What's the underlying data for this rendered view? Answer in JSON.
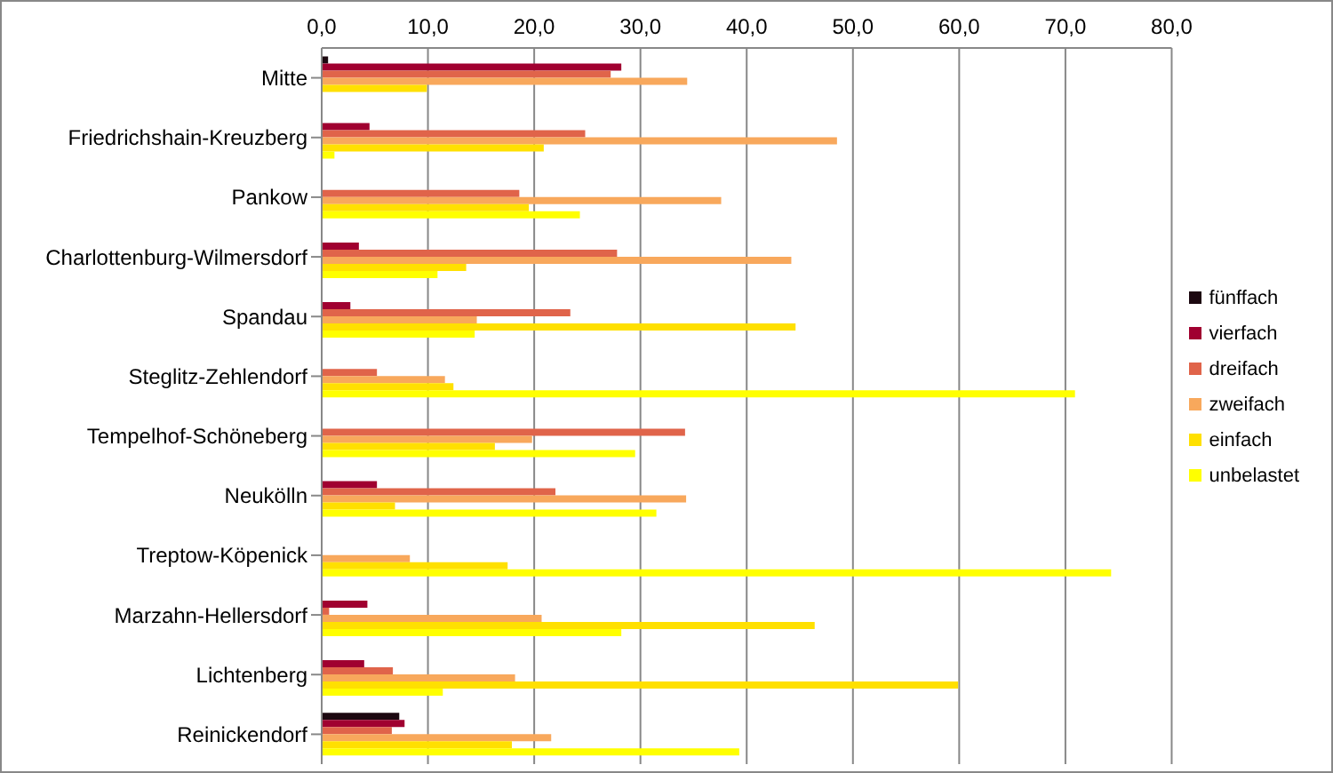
{
  "chart_data": {
    "type": "bar",
    "orientation": "horizontal",
    "categories": [
      "Mitte",
      "Friedrichshain-Kreuzberg",
      "Pankow",
      "Charlottenburg-Wilmersdorf",
      "Spandau",
      "Steglitz-Zehlendorf",
      "Tempelhof-Schöneberg",
      "Neukölln",
      "Treptow-Köpenick",
      "Marzahn-Hellersdorf",
      "Lichtenberg",
      "Reinickendorf"
    ],
    "series": [
      {
        "name": "fünffach",
        "color": "#1c0810",
        "values": [
          0.6,
          0,
          0,
          0,
          0,
          0,
          0,
          0,
          0,
          0,
          0,
          7.3
        ]
      },
      {
        "name": "vierfach",
        "color": "#a00030",
        "values": [
          28.2,
          4.5,
          0,
          3.5,
          2.7,
          0,
          0,
          5.2,
          0,
          4.3,
          4.0,
          7.8
        ]
      },
      {
        "name": "dreifach",
        "color": "#e0644a",
        "values": [
          27.2,
          24.8,
          18.6,
          27.8,
          23.4,
          5.2,
          34.2,
          22.0,
          0,
          0.7,
          6.7,
          6.6
        ]
      },
      {
        "name": "zweifach",
        "color": "#f8a85c",
        "values": [
          34.4,
          48.5,
          37.6,
          44.2,
          14.6,
          11.6,
          19.8,
          34.3,
          8.3,
          20.7,
          18.2,
          21.6
        ]
      },
      {
        "name": "einfach",
        "color": "#ffe000",
        "values": [
          9.9,
          20.9,
          19.5,
          13.6,
          44.6,
          12.4,
          16.3,
          6.9,
          17.5,
          46.4,
          59.9,
          17.9
        ]
      },
      {
        "name": "unbelastet",
        "color": "#ffff00",
        "values": [
          0,
          1.2,
          24.3,
          10.9,
          14.4,
          70.9,
          29.5,
          31.5,
          74.3,
          28.2,
          11.4,
          39.3
        ]
      }
    ],
    "xlim": [
      0,
      80
    ],
    "xticks": [
      {
        "value": 0,
        "label": "0,0"
      },
      {
        "value": 10,
        "label": "10,0"
      },
      {
        "value": 20,
        "label": "20,0"
      },
      {
        "value": 30,
        "label": "30,0"
      },
      {
        "value": 40,
        "label": "40,0"
      },
      {
        "value": 50,
        "label": "50,0"
      },
      {
        "value": 60,
        "label": "60,0"
      },
      {
        "value": 70,
        "label": "70,0"
      },
      {
        "value": 80,
        "label": "80,0"
      }
    ],
    "grid": "x",
    "legend": "right"
  }
}
